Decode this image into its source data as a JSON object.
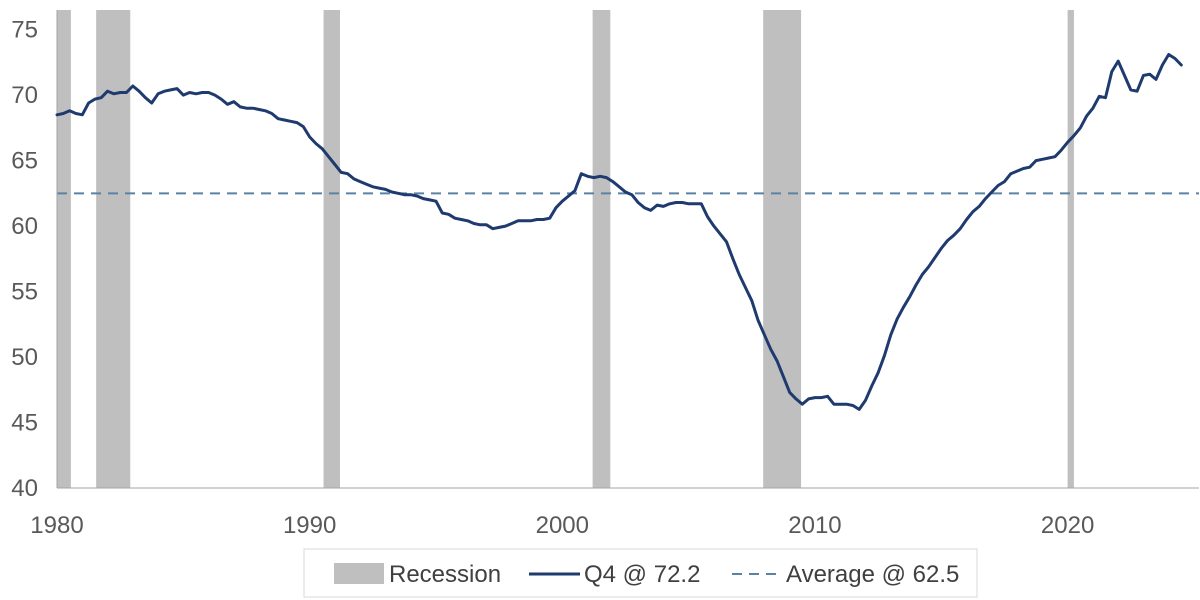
{
  "chart_data": {
    "type": "line",
    "title": "",
    "xlabel": "",
    "ylabel": "",
    "xlim": [
      1980,
      2025.2
    ],
    "ylim": [
      40,
      76.5
    ],
    "y_ticks": [
      40,
      45,
      50,
      55,
      60,
      65,
      70,
      75
    ],
    "x_ticks": [
      1980,
      1990,
      2000,
      2010,
      2020
    ],
    "grid": false,
    "legend_position": "bottom",
    "colors": {
      "recession": "#bfbfbf",
      "series": "#1f3a6e",
      "average": "#5b82a4",
      "axis": "#a6a6a6"
    },
    "recessions": [
      {
        "start": 1980.0,
        "end": 1980.55
      },
      {
        "start": 1981.55,
        "end": 1982.9
      },
      {
        "start": 1990.55,
        "end": 1991.2
      },
      {
        "start": 2001.2,
        "end": 2001.9
      },
      {
        "start": 2007.95,
        "end": 2009.45
      },
      {
        "start": 2020.0,
        "end": 2020.25
      }
    ],
    "series": [
      {
        "name": "Q4 @ 72.2",
        "points": [
          [
            1980.0,
            68.5
          ],
          [
            1980.25,
            68.6
          ],
          [
            1980.5,
            68.8
          ],
          [
            1980.75,
            68.6
          ],
          [
            1981.0,
            68.5
          ],
          [
            1981.25,
            69.4
          ],
          [
            1981.5,
            69.7
          ],
          [
            1981.75,
            69.8
          ],
          [
            1982.0,
            70.3
          ],
          [
            1982.25,
            70.1
          ],
          [
            1982.5,
            70.2
          ],
          [
            1982.75,
            70.2
          ],
          [
            1983.0,
            70.7
          ],
          [
            1983.25,
            70.3
          ],
          [
            1983.5,
            69.8
          ],
          [
            1983.75,
            69.4
          ],
          [
            1984.0,
            70.1
          ],
          [
            1984.25,
            70.3
          ],
          [
            1984.5,
            70.4
          ],
          [
            1984.75,
            70.5
          ],
          [
            1985.0,
            70.0
          ],
          [
            1985.25,
            70.2
          ],
          [
            1985.5,
            70.1
          ],
          [
            1985.75,
            70.2
          ],
          [
            1986.0,
            70.2
          ],
          [
            1986.25,
            70.0
          ],
          [
            1986.5,
            69.7
          ],
          [
            1986.75,
            69.3
          ],
          [
            1987.0,
            69.5
          ],
          [
            1987.25,
            69.1
          ],
          [
            1987.5,
            69.0
          ],
          [
            1987.75,
            69.0
          ],
          [
            1988.0,
            68.9
          ],
          [
            1988.25,
            68.8
          ],
          [
            1988.5,
            68.6
          ],
          [
            1988.75,
            68.2
          ],
          [
            1989.0,
            68.1
          ],
          [
            1989.25,
            68.0
          ],
          [
            1989.5,
            67.9
          ],
          [
            1989.75,
            67.6
          ],
          [
            1990.0,
            66.8
          ],
          [
            1990.25,
            66.3
          ],
          [
            1990.5,
            65.9
          ],
          [
            1990.75,
            65.3
          ],
          [
            1991.0,
            64.7
          ],
          [
            1991.25,
            64.1
          ],
          [
            1991.5,
            64.0
          ],
          [
            1991.75,
            63.6
          ],
          [
            1992.0,
            63.4
          ],
          [
            1992.25,
            63.2
          ],
          [
            1992.5,
            63.0
          ],
          [
            1992.75,
            62.9
          ],
          [
            1993.0,
            62.8
          ],
          [
            1993.25,
            62.6
          ],
          [
            1993.5,
            62.5
          ],
          [
            1993.75,
            62.4
          ],
          [
            1994.0,
            62.4
          ],
          [
            1994.25,
            62.3
          ],
          [
            1994.5,
            62.1
          ],
          [
            1994.75,
            62.0
          ],
          [
            1995.0,
            61.9
          ],
          [
            1995.25,
            61.0
          ],
          [
            1995.5,
            60.9
          ],
          [
            1995.75,
            60.6
          ],
          [
            1996.0,
            60.5
          ],
          [
            1996.25,
            60.4
          ],
          [
            1996.5,
            60.2
          ],
          [
            1996.75,
            60.1
          ],
          [
            1997.0,
            60.1
          ],
          [
            1997.25,
            59.8
          ],
          [
            1997.5,
            59.9
          ],
          [
            1997.75,
            60.0
          ],
          [
            1998.0,
            60.2
          ],
          [
            1998.25,
            60.4
          ],
          [
            1998.5,
            60.4
          ],
          [
            1998.75,
            60.4
          ],
          [
            1999.0,
            60.5
          ],
          [
            1999.25,
            60.5
          ],
          [
            1999.5,
            60.6
          ],
          [
            1999.75,
            61.4
          ],
          [
            2000.0,
            61.9
          ],
          [
            2000.25,
            62.3
          ],
          [
            2000.5,
            62.7
          ],
          [
            2000.75,
            64.0
          ],
          [
            2001.0,
            63.8
          ],
          [
            2001.25,
            63.7
          ],
          [
            2001.5,
            63.8
          ],
          [
            2001.75,
            63.7
          ],
          [
            2002.0,
            63.4
          ],
          [
            2002.25,
            63.0
          ],
          [
            2002.5,
            62.6
          ],
          [
            2002.75,
            62.4
          ],
          [
            2003.0,
            61.8
          ],
          [
            2003.25,
            61.4
          ],
          [
            2003.5,
            61.2
          ],
          [
            2003.75,
            61.6
          ],
          [
            2004.0,
            61.5
          ],
          [
            2004.25,
            61.7
          ],
          [
            2004.5,
            61.8
          ],
          [
            2004.75,
            61.8
          ],
          [
            2005.0,
            61.7
          ],
          [
            2005.25,
            61.7
          ],
          [
            2005.5,
            61.7
          ],
          [
            2005.75,
            60.7
          ],
          [
            2006.0,
            60.0
          ],
          [
            2006.25,
            59.4
          ],
          [
            2006.5,
            58.8
          ],
          [
            2006.75,
            57.5
          ],
          [
            2007.0,
            56.3
          ],
          [
            2007.25,
            55.3
          ],
          [
            2007.5,
            54.3
          ],
          [
            2007.75,
            52.8
          ],
          [
            2008.0,
            51.7
          ],
          [
            2008.25,
            50.6
          ],
          [
            2008.5,
            49.7
          ],
          [
            2008.75,
            48.5
          ],
          [
            2009.0,
            47.3
          ],
          [
            2009.25,
            46.8
          ],
          [
            2009.5,
            46.4
          ],
          [
            2009.75,
            46.8
          ],
          [
            2010.0,
            46.9
          ],
          [
            2010.25,
            46.9
          ],
          [
            2010.5,
            47.0
          ],
          [
            2010.75,
            46.4
          ],
          [
            2011.0,
            46.4
          ],
          [
            2011.25,
            46.4
          ],
          [
            2011.5,
            46.3
          ],
          [
            2011.75,
            46.0
          ],
          [
            2012.0,
            46.7
          ],
          [
            2012.25,
            47.8
          ],
          [
            2012.5,
            48.8
          ],
          [
            2012.75,
            50.1
          ],
          [
            2013.0,
            51.7
          ],
          [
            2013.25,
            52.9
          ],
          [
            2013.5,
            53.8
          ],
          [
            2013.75,
            54.6
          ],
          [
            2014.0,
            55.5
          ],
          [
            2014.25,
            56.3
          ],
          [
            2014.5,
            56.9
          ],
          [
            2014.75,
            57.6
          ],
          [
            2015.0,
            58.3
          ],
          [
            2015.25,
            58.9
          ],
          [
            2015.5,
            59.3
          ],
          [
            2015.75,
            59.8
          ],
          [
            2016.0,
            60.5
          ],
          [
            2016.25,
            61.1
          ],
          [
            2016.5,
            61.5
          ],
          [
            2016.75,
            62.1
          ],
          [
            2017.0,
            62.6
          ],
          [
            2017.25,
            63.1
          ],
          [
            2017.5,
            63.4
          ],
          [
            2017.75,
            64.0
          ],
          [
            2018.0,
            64.2
          ],
          [
            2018.25,
            64.4
          ],
          [
            2018.5,
            64.5
          ],
          [
            2018.75,
            65.0
          ],
          [
            2019.0,
            65.1
          ],
          [
            2019.25,
            65.2
          ],
          [
            2019.5,
            65.3
          ],
          [
            2019.75,
            65.8
          ],
          [
            2020.0,
            66.4
          ],
          [
            2020.25,
            66.9
          ],
          [
            2020.5,
            67.5
          ],
          [
            2020.75,
            68.4
          ],
          [
            2021.0,
            69.0
          ],
          [
            2021.25,
            69.9
          ],
          [
            2021.5,
            69.8
          ],
          [
            2021.75,
            71.8
          ],
          [
            2022.0,
            72.6
          ],
          [
            2022.25,
            71.5
          ],
          [
            2022.5,
            70.4
          ],
          [
            2022.75,
            70.3
          ],
          [
            2023.0,
            71.5
          ],
          [
            2023.25,
            71.6
          ],
          [
            2023.5,
            71.2
          ],
          [
            2023.75,
            72.3
          ],
          [
            2024.0,
            73.1
          ],
          [
            2024.25,
            72.8
          ],
          [
            2024.5,
            72.3
          ]
        ]
      },
      {
        "name": "Average @ 62.5",
        "value": 62.5,
        "style": "dashed"
      }
    ],
    "legend": [
      {
        "key": "recession",
        "label": "Recession"
      },
      {
        "key": "series",
        "label": "Q4 @ 72.2"
      },
      {
        "key": "average",
        "label": "Average @ 62.5"
      }
    ]
  }
}
